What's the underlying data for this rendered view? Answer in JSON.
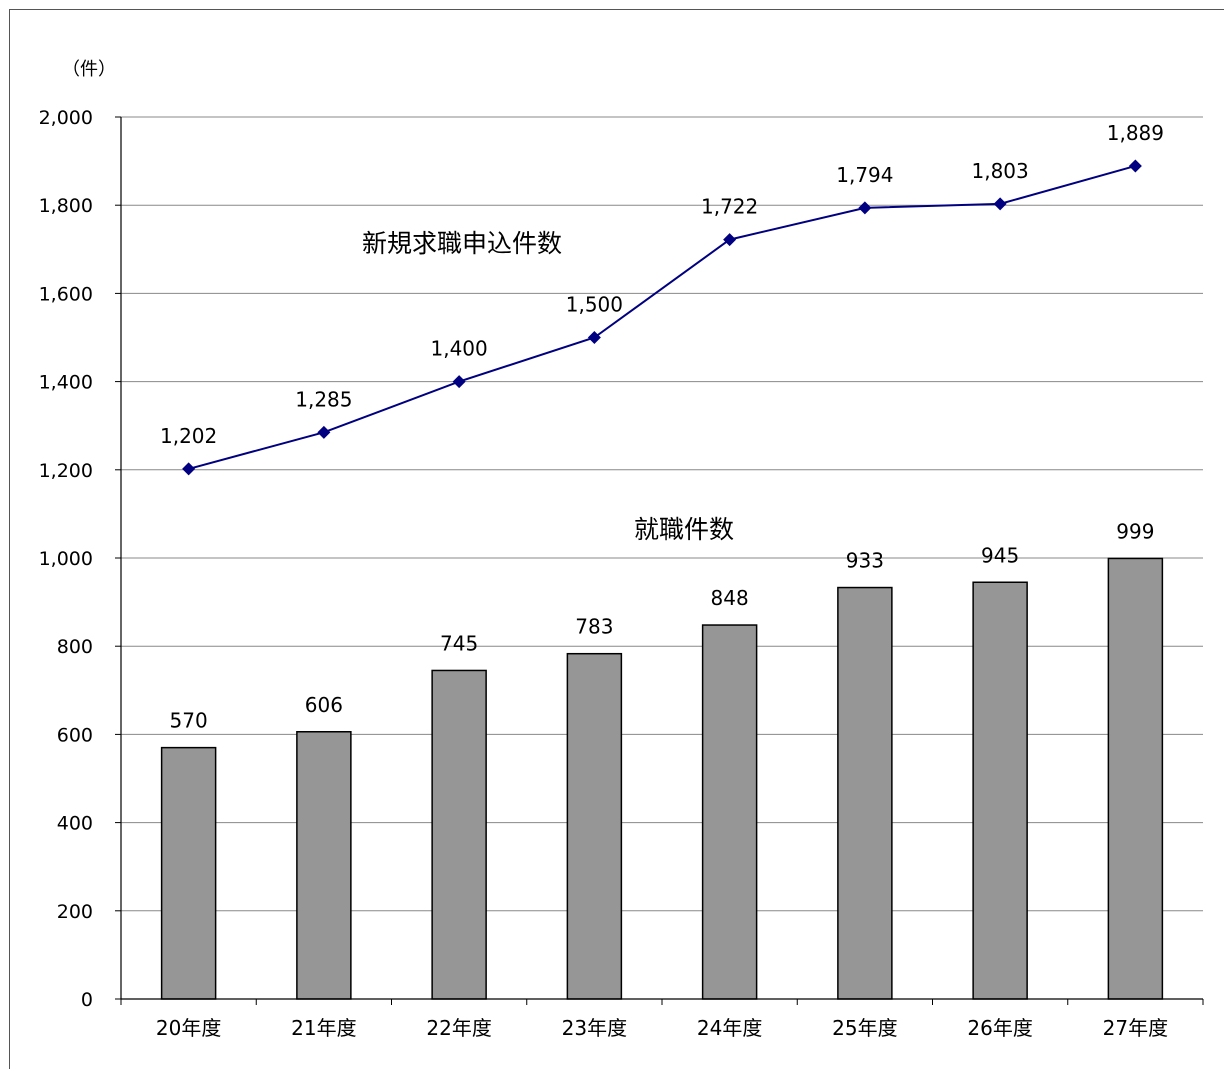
{
  "chart_data": {
    "type": "bar",
    "unit_label": "（件）",
    "categories": [
      "20年度",
      "21年度",
      "22年度",
      "23年度",
      "24年度",
      "25年度",
      "26年度",
      "27年度"
    ],
    "ylim": [
      0,
      2000
    ],
    "yticks": [
      0,
      200,
      400,
      600,
      800,
      1000,
      1200,
      1400,
      1600,
      1800,
      2000
    ],
    "ytick_labels": [
      "0",
      "200",
      "400",
      "600",
      "800",
      "1,000",
      "1,200",
      "1,400",
      "1,600",
      "1,800",
      "2,000"
    ],
    "grid": true,
    "series": [
      {
        "name": "新規求職申込件数",
        "kind": "line",
        "color": "#000080",
        "values": [
          1202,
          1285,
          1400,
          1500,
          1722,
          1794,
          1803,
          1889
        ],
        "labels": [
          "1,202",
          "1,285",
          "1,400",
          "1,500",
          "1,722",
          "1,794",
          "1,803",
          "1,889"
        ]
      },
      {
        "name": "就職件数",
        "kind": "bar",
        "color": "#969696",
        "values": [
          570,
          606,
          745,
          783,
          848,
          933,
          945,
          999
        ],
        "labels": [
          "570",
          "606",
          "745",
          "783",
          "848",
          "933",
          "945",
          "999"
        ]
      }
    ]
  }
}
